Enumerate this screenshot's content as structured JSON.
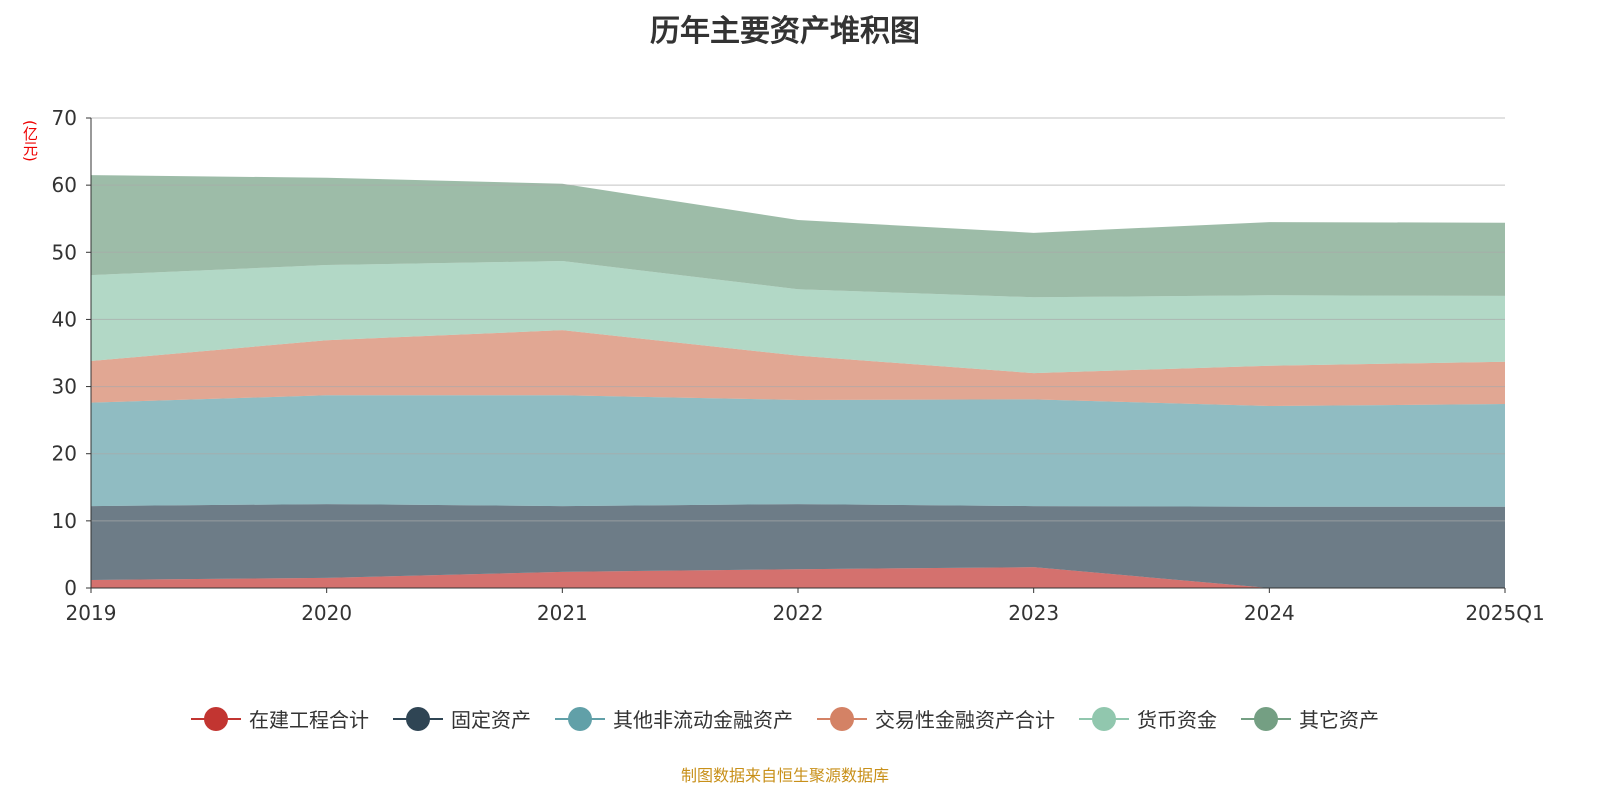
{
  "chart_data": {
    "type": "area",
    "stacked": true,
    "title": "历年主要资产堆积图",
    "ylabel": "(亿元)",
    "xlabel": "",
    "ylim": [
      0,
      70
    ],
    "yticks": [
      0,
      10,
      20,
      30,
      40,
      50,
      60,
      70
    ],
    "categories": [
      "2019",
      "2020",
      "2021",
      "2022",
      "2023",
      "2024",
      "2025Q1"
    ],
    "grid": true,
    "legend_position": "bottom",
    "series": [
      {
        "name": "在建工程合计",
        "color": "#c23531",
        "values": [
          1.2,
          1.5,
          2.4,
          2.8,
          3.1,
          0.0,
          0.0
        ]
      },
      {
        "name": "固定资产",
        "color": "#2f4554",
        "values": [
          11.0,
          11.0,
          9.8,
          9.7,
          9.1,
          12.1,
          12.1
        ]
      },
      {
        "name": "其他非流动金融资产",
        "color": "#61a0a8",
        "values": [
          15.4,
          16.2,
          16.5,
          15.5,
          15.9,
          15.0,
          15.3
        ]
      },
      {
        "name": "交易性金融资产合计",
        "color": "#d48265",
        "values": [
          6.2,
          8.2,
          9.7,
          6.6,
          3.9,
          6.0,
          6.3
        ]
      },
      {
        "name": "货币资金",
        "color": "#91c7ae",
        "values": [
          12.8,
          11.2,
          10.3,
          9.9,
          11.3,
          10.5,
          9.8
        ]
      },
      {
        "name": "其它资产",
        "color": "#749f83",
        "values": [
          14.9,
          13.0,
          11.5,
          10.3,
          9.6,
          10.9,
          10.9
        ]
      }
    ]
  },
  "source": "制图数据来自恒生聚源数据库"
}
